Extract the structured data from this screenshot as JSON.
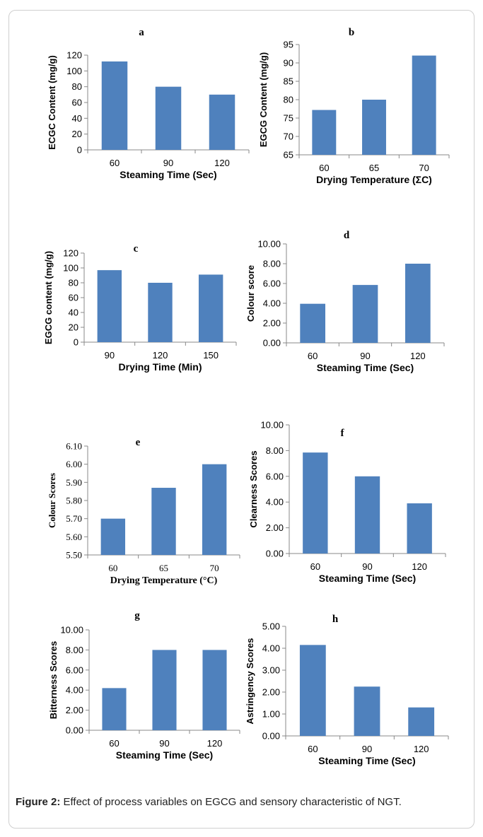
{
  "caption": {
    "label": "Figure 2:",
    "text": " Effect of process variables on EGCG and sensory characteristic of NGT."
  },
  "colors": {
    "bar": "#4f81bd",
    "axis": "#888888",
    "text": "#000000"
  },
  "chart_data": [
    {
      "type": "bar",
      "title": "a",
      "categories": [
        "60",
        "90",
        "120"
      ],
      "values": [
        112,
        80,
        70
      ],
      "xlabel": "Steaming Time (Sec)",
      "ylabel": "ECGC Content (mg/g)",
      "ylim": [
        0,
        120
      ],
      "yticks": [
        "0",
        "20",
        "40",
        "60",
        "80",
        "100",
        "120"
      ],
      "grid": false,
      "legend": "none"
    },
    {
      "type": "bar",
      "title": "b",
      "categories": [
        "60",
        "65",
        "70"
      ],
      "values": [
        77.2,
        80,
        92
      ],
      "xlabel": "Drying  Temperature (ΣC)",
      "ylabel": "EGCG Content (mg/g)",
      "ylim": [
        65,
        95
      ],
      "yticks": [
        "65",
        "70",
        "75",
        "80",
        "85",
        "90",
        "95"
      ],
      "grid": false,
      "legend": "none"
    },
    {
      "type": "bar",
      "title": "c",
      "categories": [
        "90",
        "120",
        "150"
      ],
      "values": [
        97,
        80,
        91
      ],
      "xlabel": "Drying Time (Min)",
      "ylabel": "EGCG  content (mg/g)",
      "ylim": [
        0,
        120
      ],
      "yticks": [
        "0",
        "20",
        "40",
        "60",
        "80",
        "100",
        "120"
      ],
      "grid": false,
      "legend": "none"
    },
    {
      "type": "bar",
      "title": "d",
      "categories": [
        "60",
        "90",
        "120"
      ],
      "values": [
        3.95,
        5.85,
        8.0
      ],
      "xlabel": "Steaming Time (Sec)",
      "ylabel": "Colour score",
      "ylim": [
        0,
        10
      ],
      "yticks": [
        "0.00",
        "2.00",
        "4.00",
        "6.00",
        "8.00",
        "10.00"
      ],
      "grid": false,
      "legend": "none"
    },
    {
      "type": "bar",
      "title": "e",
      "categories": [
        "60",
        "65",
        "70"
      ],
      "values": [
        5.7,
        5.87,
        6.0
      ],
      "xlabel": "Drying  Temperature (°C)",
      "ylabel": "Colour Scores",
      "ylim": [
        5.5,
        6.1
      ],
      "yticks": [
        "5.50",
        "5.60",
        "5.70",
        "5.80",
        "5.90",
        "6.00",
        "6.10"
      ],
      "grid": false,
      "legend": "none"
    },
    {
      "type": "bar",
      "title": "f",
      "categories": [
        "60",
        "90",
        "120"
      ],
      "values": [
        7.85,
        6.0,
        3.9
      ],
      "xlabel": "Steaming  Time (Sec)",
      "ylabel": "Clearness Scores",
      "ylim": [
        0,
        10
      ],
      "yticks": [
        "0.00",
        "2.00",
        "4.00",
        "6.00",
        "8.00",
        "10.00"
      ],
      "grid": false,
      "legend": "none"
    },
    {
      "type": "bar",
      "title": "g",
      "categories": [
        "60",
        "90",
        "120"
      ],
      "values": [
        4.2,
        8.0,
        8.0
      ],
      "xlabel": "Steaming Time (Sec)",
      "ylabel": "Bitterness Scores",
      "ylim": [
        0,
        10
      ],
      "yticks": [
        "0.00",
        "2.00",
        "4.00",
        "6.00",
        "8.00",
        "10.00"
      ],
      "grid": false,
      "legend": "none"
    },
    {
      "type": "bar",
      "title": "h",
      "categories": [
        "60",
        "90",
        "120"
      ],
      "values": [
        4.15,
        2.25,
        1.3
      ],
      "xlabel": "Steaming Time (Sec)",
      "ylabel": "Astringency Scores",
      "ylim": [
        0,
        5
      ],
      "yticks": [
        "0.00",
        "1.00",
        "2.00",
        "3.00",
        "4.00",
        "5.00"
      ],
      "grid": false,
      "legend": "none"
    }
  ]
}
